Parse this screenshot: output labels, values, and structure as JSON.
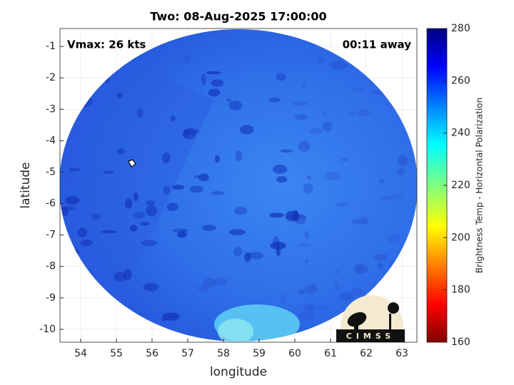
{
  "chart_data": {
    "type": "image",
    "title": "Two: 08-Aug-2025 17:00:00",
    "annotations": [
      "Vmax: 26 kts",
      "00:11 away"
    ],
    "x_label": "longitude",
    "y_label": "latitude",
    "xlim": [
      53.42,
      63.42
    ],
    "xticks": [
      54,
      55,
      56,
      57,
      58,
      59,
      60,
      61,
      62,
      63
    ],
    "ylim": [
      -10.41,
      -0.43
    ],
    "yticks": [
      -1,
      -2,
      -3,
      -4,
      -5,
      -6,
      -7,
      -8,
      -9,
      -10
    ],
    "grid": true,
    "colorbar": {
      "label": "Brightness Temp - Horizontal Polarization",
      "lim": [
        160,
        280
      ],
      "ticks": [
        160,
        180,
        200,
        220,
        240,
        260,
        280
      ]
    },
    "logo": "CIMSS"
  }
}
